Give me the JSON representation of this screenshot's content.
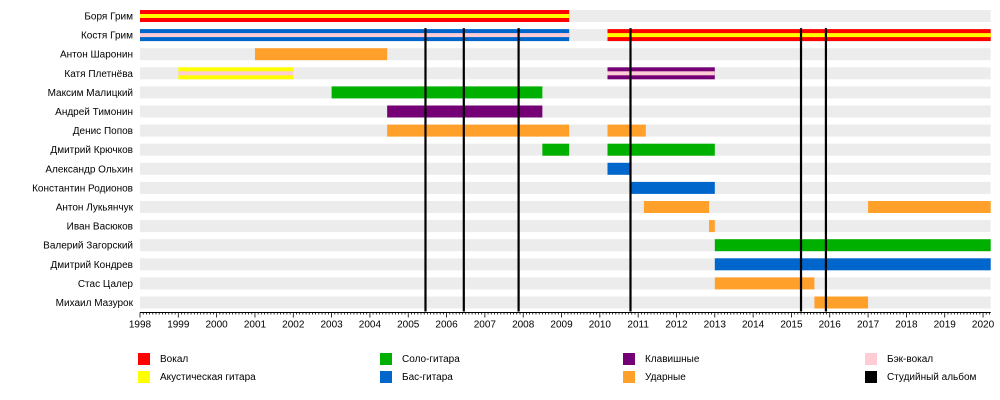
{
  "chart_data": {
    "type": "timeline",
    "x_range": [
      1998,
      2020.2
    ],
    "ticks": [
      1998,
      1999,
      2000,
      2001,
      2002,
      2003,
      2004,
      2005,
      2006,
      2007,
      2008,
      2009,
      2010,
      2011,
      2012,
      2013,
      2014,
      2015,
      2016,
      2017,
      2018,
      2019,
      2020
    ],
    "roles": {
      "vocal": {
        "label": "Вокал",
        "color": "#ff0000"
      },
      "acoustic": {
        "label": "Акустическая гитара",
        "color": "#ffff00"
      },
      "lead": {
        "label": "Соло-гитара",
        "color": "#00b000"
      },
      "bass": {
        "label": "Бас-гитара",
        "color": "#0066cc"
      },
      "keys": {
        "label": "Клавишные",
        "color": "#750075"
      },
      "drums": {
        "label": "Ударные",
        "color": "#ffa02a"
      },
      "backing": {
        "label": "Бэк-вокал",
        "color": "#ffccd5"
      },
      "album": {
        "label": "Студийный альбом",
        "color": "#000000"
      }
    },
    "legend_order": [
      "vocal",
      "acoustic",
      "lead",
      "bass",
      "keys",
      "drums",
      "backing",
      "album"
    ],
    "members": [
      {
        "name": "Боря Грим",
        "periods": [
          {
            "start": 1998,
            "end": 2009.2,
            "role": "vocal",
            "second": "acoustic"
          }
        ]
      },
      {
        "name": "Костя Грим",
        "periods": [
          {
            "start": 1998,
            "end": 2009.2,
            "role": "bass",
            "second": "backing"
          },
          {
            "start": 2010.2,
            "end": 2020.2,
            "role": "vocal",
            "second": "acoustic"
          }
        ]
      },
      {
        "name": "Антон Шаронин",
        "periods": [
          {
            "start": 2001,
            "end": 2004.45,
            "role": "drums"
          }
        ]
      },
      {
        "name": "Катя Плетнёва",
        "periods": [
          {
            "start": 1999,
            "end": 2002,
            "role": "acoustic",
            "second": "backing"
          },
          {
            "start": 2010.2,
            "end": 2013,
            "role": "keys",
            "second": "backing"
          }
        ]
      },
      {
        "name": "Максим Малицкий",
        "periods": [
          {
            "start": 2003,
            "end": 2008.5,
            "role": "lead"
          }
        ]
      },
      {
        "name": "Андрей Тимонин",
        "periods": [
          {
            "start": 2004.45,
            "end": 2008.5,
            "role": "keys"
          }
        ]
      },
      {
        "name": "Денис Попов",
        "periods": [
          {
            "start": 2004.45,
            "end": 2009.2,
            "role": "drums"
          },
          {
            "start": 2010.2,
            "end": 2011.2,
            "role": "drums"
          }
        ]
      },
      {
        "name": "Дмитрий Крючков",
        "periods": [
          {
            "start": 2008.5,
            "end": 2009.2,
            "role": "lead"
          },
          {
            "start": 2010.2,
            "end": 2013,
            "role": "lead"
          }
        ]
      },
      {
        "name": "Александр Ольхин",
        "periods": [
          {
            "start": 2010.2,
            "end": 2010.8,
            "role": "bass"
          }
        ]
      },
      {
        "name": "Константин Родионов",
        "periods": [
          {
            "start": 2010.8,
            "end": 2013,
            "role": "bass"
          }
        ]
      },
      {
        "name": "Антон Лукьянчук",
        "periods": [
          {
            "start": 2011.15,
            "end": 2012.85,
            "role": "drums"
          },
          {
            "start": 2017,
            "end": 2020.2,
            "role": "drums"
          }
        ]
      },
      {
        "name": "Иван Васюков",
        "periods": [
          {
            "start": 2012.85,
            "end": 2013,
            "role": "drums"
          }
        ]
      },
      {
        "name": "Валерий Загорский",
        "periods": [
          {
            "start": 2013,
            "end": 2020.2,
            "role": "lead"
          }
        ]
      },
      {
        "name": "Дмитрий Кондрев",
        "periods": [
          {
            "start": 2013,
            "end": 2020.2,
            "role": "bass"
          }
        ]
      },
      {
        "name": "Стас Цалер",
        "periods": [
          {
            "start": 2013,
            "end": 2015.6,
            "role": "drums"
          }
        ]
      },
      {
        "name": "Михаил Мазурок",
        "periods": [
          {
            "start": 2015.6,
            "end": 2017,
            "role": "drums"
          }
        ]
      }
    ],
    "albums": [
      2005.45,
      2006.45,
      2007.88,
      2010.8,
      2015.25,
      2015.9
    ]
  }
}
